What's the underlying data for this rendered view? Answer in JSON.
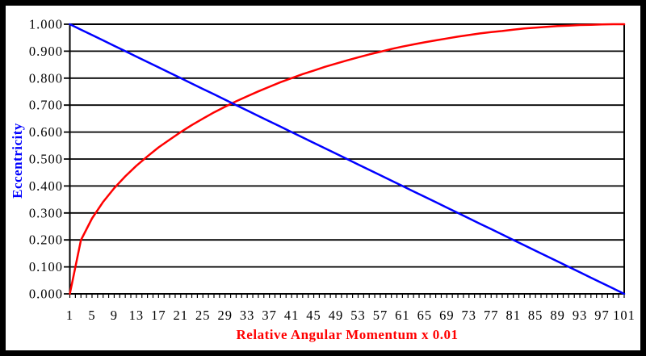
{
  "chart_data": {
    "type": "line",
    "title": "",
    "xlabel": "Relative Angular Momentum x 0.01",
    "ylabel": "Eccentricity",
    "xlabel_color": "#ff0000",
    "ylabel_color": "#0000ff",
    "tick_label_color": "#000000",
    "grid_color": "#000000",
    "plot_border_color": "#000000",
    "outer_frame_color": "#000000",
    "background_color": "#ffffff",
    "legend": "none",
    "grid": "horizontal gridlines at every 0.100",
    "xlim": [
      1,
      101
    ],
    "ylim": [
      0,
      1
    ],
    "x_tick_labels": [
      "1",
      "5",
      "9",
      "13",
      "17",
      "21",
      "25",
      "29",
      "33",
      "37",
      "41",
      "45",
      "49",
      "53",
      "57",
      "61",
      "65",
      "69",
      "73",
      "77",
      "81",
      "85",
      "89",
      "93",
      "97",
      "101"
    ],
    "y_tick_labels": [
      "0.000",
      "0.100",
      "0.200",
      "0.300",
      "0.400",
      "0.500",
      "0.600",
      "0.700",
      "0.800",
      "0.900",
      "1.000"
    ],
    "x": [
      1,
      3,
      5,
      7,
      9,
      11,
      13,
      15,
      17,
      19,
      21,
      23,
      25,
      27,
      29,
      31,
      33,
      35,
      37,
      39,
      41,
      43,
      45,
      47,
      49,
      51,
      53,
      55,
      57,
      59,
      61,
      63,
      65,
      67,
      69,
      71,
      73,
      75,
      77,
      79,
      81,
      83,
      85,
      87,
      89,
      91,
      93,
      95,
      97,
      99,
      101
    ],
    "series": [
      {
        "name": "red-rising-curve",
        "color": "#ff0000",
        "values": [
          0.0,
          0.199,
          0.28,
          0.341,
          0.392,
          0.436,
          0.475,
          0.51,
          0.543,
          0.572,
          0.6,
          0.626,
          0.65,
          0.673,
          0.694,
          0.714,
          0.733,
          0.751,
          0.768,
          0.785,
          0.8,
          0.815,
          0.828,
          0.842,
          0.854,
          0.866,
          0.877,
          0.888,
          0.898,
          0.908,
          0.917,
          0.925,
          0.933,
          0.94,
          0.947,
          0.954,
          0.96,
          0.966,
          0.971,
          0.975,
          0.98,
          0.984,
          0.987,
          0.99,
          0.993,
          0.995,
          0.997,
          0.998,
          0.999,
          1.0,
          1.0
        ]
      },
      {
        "name": "blue-falling-line",
        "color": "#0000ff",
        "values": [
          1.0,
          0.98,
          0.96,
          0.94,
          0.92,
          0.9,
          0.88,
          0.86,
          0.84,
          0.82,
          0.8,
          0.78,
          0.76,
          0.74,
          0.72,
          0.7,
          0.68,
          0.66,
          0.64,
          0.62,
          0.6,
          0.58,
          0.56,
          0.54,
          0.52,
          0.5,
          0.48,
          0.46,
          0.44,
          0.42,
          0.4,
          0.38,
          0.36,
          0.34,
          0.32,
          0.3,
          0.28,
          0.26,
          0.24,
          0.22,
          0.2,
          0.18,
          0.16,
          0.14,
          0.12,
          0.1,
          0.08,
          0.06,
          0.04,
          0.02,
          0.0
        ]
      }
    ]
  }
}
